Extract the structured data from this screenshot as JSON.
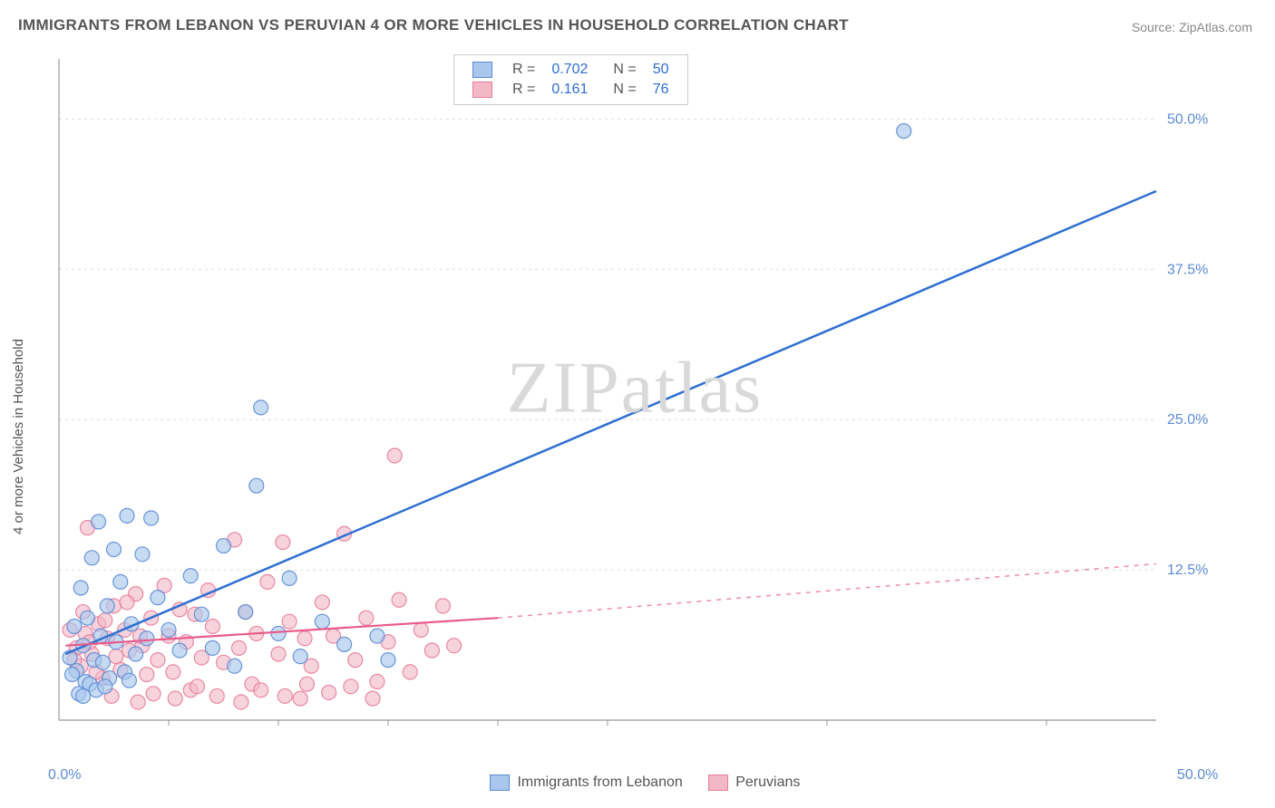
{
  "title": "IMMIGRANTS FROM LEBANON VS PERUVIAN 4 OR MORE VEHICLES IN HOUSEHOLD CORRELATION CHART",
  "source": "Source: ZipAtlas.com",
  "ylabel": "4 or more Vehicles in Household",
  "watermark": "ZIPatlas",
  "chart": {
    "type": "scatter",
    "xlim": [
      0,
      50
    ],
    "ylim": [
      0,
      55
    ],
    "y_ticks": [
      12.5,
      25.0,
      37.5,
      50.0
    ],
    "y_tick_labels": [
      "12.5%",
      "25.0%",
      "37.5%",
      "50.0%"
    ],
    "x_origin_label": "0.0%",
    "x_max_label": "50.0%",
    "grid_color": "#dddddd",
    "axis_color": "#999999",
    "tick_font_color": "#5b8bd4",
    "background": "#ffffff",
    "series": [
      {
        "name": "Immigrants from Lebanon",
        "R": "0.702",
        "N": "50",
        "marker_fill": "#a9c7ec",
        "marker_stroke": "#5b8bd4",
        "marker_opacity": 0.65,
        "marker_radius": 8,
        "line_color": "#2e6fd1",
        "line_width": 2.5,
        "line_dash": "none",
        "line_from": [
          0.3,
          5.5
        ],
        "line_to": [
          50,
          44
        ],
        "points": [
          [
            0.5,
            5.2
          ],
          [
            0.7,
            7.8
          ],
          [
            0.8,
            4.1
          ],
          [
            1.0,
            11.0
          ],
          [
            1.1,
            6.2
          ],
          [
            1.2,
            3.2
          ],
          [
            1.3,
            8.5
          ],
          [
            1.5,
            13.5
          ],
          [
            1.6,
            5.0
          ],
          [
            1.8,
            16.5
          ],
          [
            1.9,
            7.0
          ],
          [
            2.0,
            4.8
          ],
          [
            2.2,
            9.5
          ],
          [
            2.5,
            14.2
          ],
          [
            2.6,
            6.5
          ],
          [
            2.8,
            11.5
          ],
          [
            3.0,
            4.0
          ],
          [
            3.1,
            17.0
          ],
          [
            3.3,
            8.0
          ],
          [
            3.5,
            5.5
          ],
          [
            3.8,
            13.8
          ],
          [
            4.0,
            6.8
          ],
          [
            4.2,
            16.8
          ],
          [
            4.5,
            10.2
          ],
          [
            5.0,
            7.5
          ],
          [
            5.5,
            5.8
          ],
          [
            6.0,
            12.0
          ],
          [
            6.5,
            8.8
          ],
          [
            7.0,
            6.0
          ],
          [
            7.5,
            14.5
          ],
          [
            8.0,
            4.5
          ],
          [
            8.5,
            9.0
          ],
          [
            9.0,
            19.5
          ],
          [
            9.2,
            26.0
          ],
          [
            10.0,
            7.2
          ],
          [
            10.5,
            11.8
          ],
          [
            11.0,
            5.3
          ],
          [
            12.0,
            8.2
          ],
          [
            13.0,
            6.3
          ],
          [
            14.5,
            7.0
          ],
          [
            15.0,
            5.0
          ],
          [
            38.5,
            49.0
          ],
          [
            1.4,
            3.0
          ],
          [
            1.7,
            2.5
          ],
          [
            2.3,
            3.5
          ],
          [
            0.9,
            2.2
          ],
          [
            0.6,
            3.8
          ],
          [
            1.1,
            2.0
          ],
          [
            2.1,
            2.8
          ],
          [
            3.2,
            3.3
          ]
        ]
      },
      {
        "name": "Peruvians",
        "R": "0.161",
        "N": "76",
        "marker_fill": "#f2b8c6",
        "marker_stroke": "#e87c9a",
        "marker_opacity": 0.6,
        "marker_radius": 8,
        "line_color": "#e85a8a",
        "line_width": 2.2,
        "line_dash": "none",
        "line_from": [
          0.3,
          6.2
        ],
        "line_to": [
          20,
          8.5
        ],
        "ext_dash_to": [
          50,
          13.0
        ],
        "points": [
          [
            0.8,
            6.0
          ],
          [
            1.0,
            4.5
          ],
          [
            1.2,
            7.2
          ],
          [
            1.5,
            5.5
          ],
          [
            1.8,
            8.0
          ],
          [
            2.0,
            3.5
          ],
          [
            2.2,
            6.8
          ],
          [
            2.5,
            9.5
          ],
          [
            2.8,
            4.2
          ],
          [
            3.0,
            7.5
          ],
          [
            3.2,
            5.8
          ],
          [
            3.5,
            10.5
          ],
          [
            3.8,
            6.2
          ],
          [
            4.0,
            3.8
          ],
          [
            4.2,
            8.5
          ],
          [
            4.5,
            5.0
          ],
          [
            4.8,
            11.2
          ],
          [
            5.0,
            7.0
          ],
          [
            5.2,
            4.0
          ],
          [
            5.5,
            9.2
          ],
          [
            5.8,
            6.5
          ],
          [
            6.0,
            2.5
          ],
          [
            6.2,
            8.8
          ],
          [
            6.5,
            5.2
          ],
          [
            6.8,
            10.8
          ],
          [
            7.0,
            7.8
          ],
          [
            7.5,
            4.8
          ],
          [
            8.0,
            15.0
          ],
          [
            8.2,
            6.0
          ],
          [
            8.5,
            9.0
          ],
          [
            8.8,
            3.0
          ],
          [
            9.0,
            7.2
          ],
          [
            9.5,
            11.5
          ],
          [
            10.0,
            5.5
          ],
          [
            10.2,
            14.8
          ],
          [
            10.5,
            8.2
          ],
          [
            11.0,
            1.8
          ],
          [
            11.2,
            6.8
          ],
          [
            11.5,
            4.5
          ],
          [
            12.0,
            9.8
          ],
          [
            12.5,
            7.0
          ],
          [
            13.0,
            15.5
          ],
          [
            13.5,
            5.0
          ],
          [
            14.0,
            8.5
          ],
          [
            14.5,
            3.2
          ],
          [
            15.0,
            6.5
          ],
          [
            15.3,
            22.0
          ],
          [
            15.5,
            10.0
          ],
          [
            16.0,
            4.0
          ],
          [
            16.5,
            7.5
          ],
          [
            17.0,
            5.8
          ],
          [
            17.5,
            9.5
          ],
          [
            18.0,
            6.2
          ],
          [
            1.3,
            16.0
          ],
          [
            2.4,
            2.0
          ],
          [
            3.6,
            1.5
          ],
          [
            4.3,
            2.2
          ],
          [
            5.3,
            1.8
          ],
          [
            6.3,
            2.8
          ],
          [
            7.2,
            2.0
          ],
          [
            8.3,
            1.5
          ],
          [
            9.2,
            2.5
          ],
          [
            10.3,
            2.0
          ],
          [
            11.3,
            3.0
          ],
          [
            12.3,
            2.3
          ],
          [
            13.3,
            2.8
          ],
          [
            14.3,
            1.8
          ],
          [
            0.5,
            7.5
          ],
          [
            0.7,
            5.0
          ],
          [
            1.1,
            9.0
          ],
          [
            1.4,
            6.5
          ],
          [
            1.7,
            4.0
          ],
          [
            2.1,
            8.3
          ],
          [
            2.6,
            5.3
          ],
          [
            3.1,
            9.8
          ],
          [
            3.7,
            7.0
          ]
        ]
      }
    ]
  },
  "legend_top": {
    "rows": [
      {
        "swatch_fill": "#a9c7ec",
        "swatch_stroke": "#5b8bd4",
        "R_lbl": "R =",
        "R": "0.702",
        "N_lbl": "N =",
        "N": "50"
      },
      {
        "swatch_fill": "#f2b8c6",
        "swatch_stroke": "#e87c9a",
        "R_lbl": "R =",
        "R": "0.161",
        "N_lbl": "N =",
        "N": "76"
      }
    ]
  },
  "legend_bottom": [
    {
      "swatch_fill": "#a9c7ec",
      "swatch_stroke": "#5b8bd4",
      "label": "Immigrants from Lebanon"
    },
    {
      "swatch_fill": "#f2b8c6",
      "swatch_stroke": "#e87c9a",
      "label": "Peruvians"
    }
  ]
}
